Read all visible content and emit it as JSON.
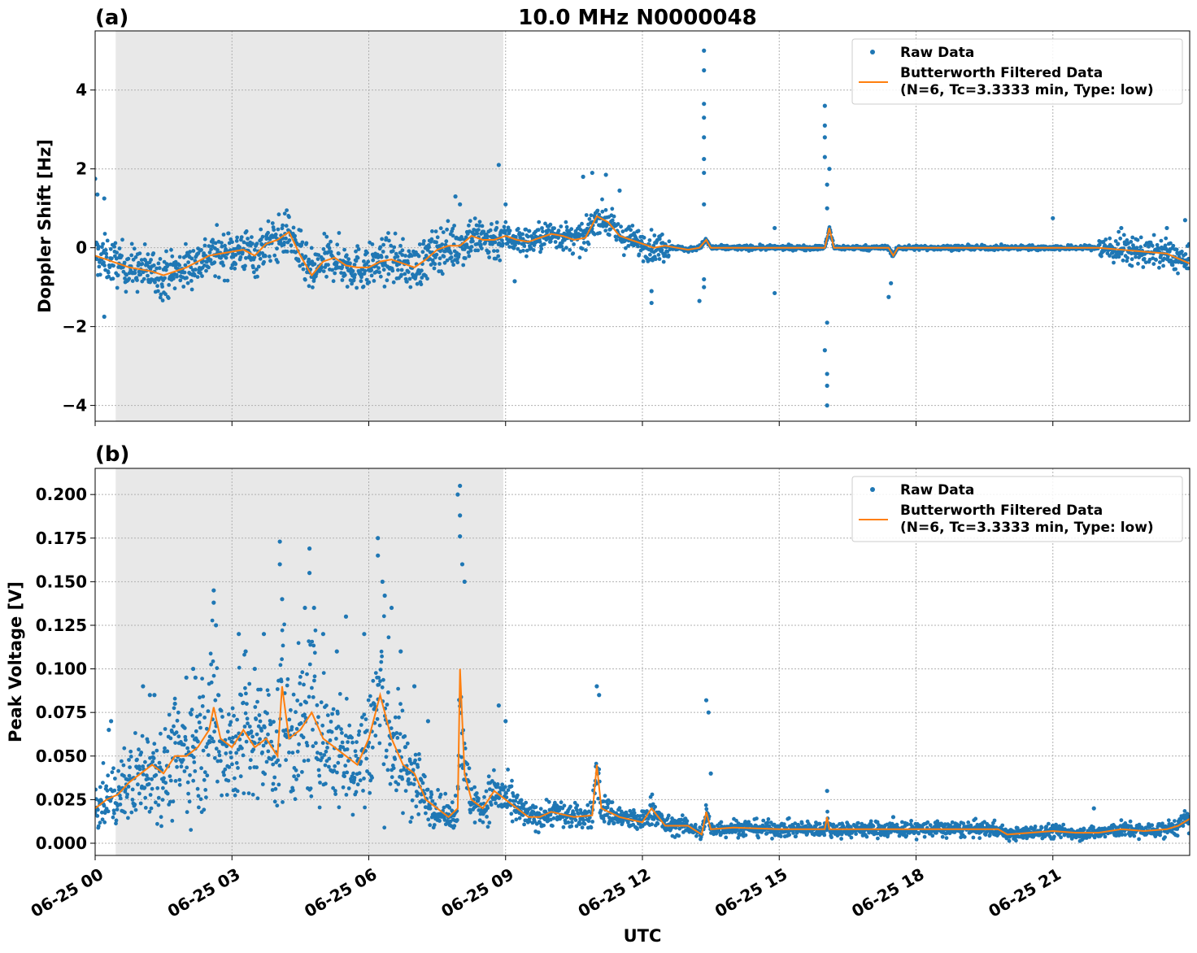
{
  "figure": {
    "title": "10.0 MHz N0000048",
    "xlabel": "UTC"
  },
  "colors": {
    "raw": "#1f77b4",
    "filtered": "#ff7f0e",
    "shade": "#e8e8e8",
    "grid": "#b0b0b0"
  },
  "chart_data": [
    {
      "type": "scatter",
      "panel_label": "(a)",
      "ylabel": "Doppler Shift [Hz]",
      "x_unit": "hours UTC on 06-25",
      "xlim": [
        0,
        24
      ],
      "ylim": [
        -4.4,
        5.5
      ],
      "yticks": [
        -4,
        -2,
        0,
        2,
        4
      ],
      "ytick_labels": [
        "−4",
        "−2",
        "0",
        "2",
        "4"
      ],
      "grid": true,
      "shaded_x_range": [
        0.45,
        8.95
      ],
      "legend": {
        "placement": "top-right",
        "raw_label": "Raw Data",
        "filt_label_1": "Butterworth Filtered Data",
        "filt_label_2": "(N=6, Tc=3.3333 min, Type: low)"
      },
      "series": [
        {
          "name": "Butterworth Filtered Data",
          "mark": "line",
          "x": [
            0,
            0.25,
            0.5,
            0.75,
            1,
            1.25,
            1.5,
            1.75,
            2,
            2.25,
            2.5,
            2.75,
            3,
            3.25,
            3.5,
            3.75,
            4,
            4.25,
            4.5,
            4.75,
            5,
            5.25,
            5.5,
            5.75,
            6,
            6.25,
            6.5,
            6.75,
            7,
            7.25,
            7.5,
            7.75,
            8,
            8.25,
            8.5,
            8.75,
            9,
            9.25,
            9.5,
            9.75,
            10,
            10.25,
            10.5,
            10.75,
            11,
            11.25,
            11.5,
            11.75,
            12,
            12.25,
            12.5,
            12.75,
            13,
            13.25,
            13.4,
            13.5,
            13.75,
            14,
            15,
            16,
            16.1,
            16.2,
            16.5,
            17,
            17.4,
            17.5,
            17.6,
            18,
            19,
            20,
            21,
            22,
            22.5,
            23,
            23.5,
            24
          ],
          "y": [
            -0.2,
            -0.3,
            -0.4,
            -0.5,
            -0.55,
            -0.6,
            -0.7,
            -0.6,
            -0.5,
            -0.35,
            -0.2,
            -0.15,
            -0.1,
            -0.05,
            -0.2,
            0.1,
            0.2,
            0.4,
            -0.2,
            -0.7,
            -0.35,
            -0.25,
            -0.45,
            -0.5,
            -0.5,
            -0.35,
            -0.3,
            -0.4,
            -0.5,
            -0.3,
            -0.05,
            0.05,
            0.05,
            0.3,
            0.2,
            0.2,
            0.3,
            0.2,
            0.15,
            0.25,
            0.35,
            0.3,
            0.2,
            0.25,
            0.8,
            0.65,
            0.3,
            0.2,
            0.1,
            0.0,
            0.05,
            0.0,
            -0.05,
            0.0,
            0.2,
            0.0,
            0.0,
            0.0,
            0.0,
            0.0,
            0.5,
            0.0,
            0.0,
            0.0,
            0.0,
            -0.2,
            0.0,
            0.0,
            0.0,
            0.0,
            0.0,
            0.0,
            -0.05,
            -0.1,
            -0.15,
            -0.4
          ]
        },
        {
          "name": "Raw Data",
          "mark": "points",
          "outliers": {
            "x": [
              0.0,
              0.05,
              0.2,
              0.2,
              7.9,
              8.0,
              8.85,
              9.0,
              9.2,
              10.7,
              10.9,
              11.2,
              11.5,
              12.2,
              12.2,
              13.25,
              13.35,
              13.35,
              13.35,
              13.35,
              13.35,
              13.35,
              13.35,
              13.35,
              13.35,
              13.35,
              14.9,
              14.9,
              16.0,
              16.0,
              16.0,
              16.0,
              16.05,
              16.05,
              16.05,
              16.0,
              16.05,
              16.05,
              16.05,
              16.1,
              17.4,
              17.45,
              21.0,
              22.5,
              23.5,
              23.9
            ],
            "y": [
              1.75,
              1.35,
              1.25,
              -1.75,
              1.3,
              1.1,
              2.1,
              1.1,
              -0.85,
              1.8,
              1.9,
              1.85,
              1.45,
              -1.4,
              -1.1,
              -1.35,
              5.0,
              4.5,
              3.65,
              3.3,
              2.8,
              1.9,
              1.1,
              -0.8,
              -1.0,
              2.25,
              0.5,
              -1.15,
              3.6,
              3.1,
              2.8,
              2.3,
              1.6,
              1.0,
              -1.9,
              -2.6,
              -3.2,
              -3.5,
              -4.0,
              2.0,
              -1.25,
              -0.9,
              0.75,
              0.5,
              0.5,
              0.7
            ]
          }
        }
      ]
    },
    {
      "type": "scatter",
      "panel_label": "(b)",
      "ylabel": "Peak Voltage [V]",
      "x_unit": "hours UTC on 06-25",
      "xlim": [
        0,
        24
      ],
      "ylim": [
        -0.007,
        0.215
      ],
      "yticks": [
        0.0,
        0.025,
        0.05,
        0.075,
        0.1,
        0.125,
        0.15,
        0.175,
        0.2
      ],
      "ytick_labels": [
        "0.000",
        "0.025",
        "0.050",
        "0.075",
        "0.100",
        "0.125",
        "0.150",
        "0.175",
        "0.200"
      ],
      "xticks": [
        0,
        3,
        6,
        9,
        12,
        15,
        18,
        21
      ],
      "xtick_labels": [
        "06-25 00",
        "06-25 03",
        "06-25 06",
        "06-25 09",
        "06-25 12",
        "06-25 15",
        "06-25 18",
        "06-25 21"
      ],
      "grid": true,
      "shaded_x_range": [
        0.45,
        8.95
      ],
      "legend": {
        "placement": "top-right",
        "raw_label": "Raw Data",
        "filt_label_1": "Butterworth Filtered Data",
        "filt_label_2": "(N=6, Tc=3.3333 min, Type: low)"
      },
      "series": [
        {
          "name": "Butterworth Filtered Data",
          "mark": "line",
          "x": [
            0,
            0.25,
            0.5,
            0.75,
            1,
            1.25,
            1.5,
            1.75,
            2,
            2.25,
            2.5,
            2.6,
            2.75,
            3,
            3.25,
            3.5,
            3.75,
            4,
            4.1,
            4.25,
            4.5,
            4.75,
            5,
            5.25,
            5.5,
            5.75,
            6,
            6.25,
            6.5,
            6.75,
            7,
            7.25,
            7.5,
            7.75,
            7.95,
            8.0,
            8.1,
            8.25,
            8.5,
            8.75,
            9,
            9.25,
            9.5,
            9.75,
            10,
            10.5,
            10.9,
            11.0,
            11.1,
            11.5,
            12,
            12.2,
            12.5,
            13,
            13.3,
            13.4,
            13.5,
            14,
            15,
            16,
            16.05,
            16.1,
            17,
            18,
            19,
            19.8,
            20,
            20.5,
            21,
            21.5,
            22,
            22.5,
            23,
            23.5,
            23.75,
            24
          ],
          "y": [
            0.02,
            0.025,
            0.028,
            0.035,
            0.04,
            0.045,
            0.04,
            0.05,
            0.05,
            0.055,
            0.065,
            0.078,
            0.06,
            0.055,
            0.065,
            0.055,
            0.06,
            0.05,
            0.09,
            0.06,
            0.065,
            0.075,
            0.06,
            0.055,
            0.05,
            0.045,
            0.06,
            0.085,
            0.06,
            0.045,
            0.04,
            0.025,
            0.02,
            0.015,
            0.02,
            0.1,
            0.04,
            0.025,
            0.02,
            0.03,
            0.025,
            0.02,
            0.015,
            0.015,
            0.018,
            0.015,
            0.016,
            0.045,
            0.02,
            0.015,
            0.012,
            0.02,
            0.01,
            0.01,
            0.005,
            0.018,
            0.008,
            0.009,
            0.008,
            0.008,
            0.015,
            0.008,
            0.008,
            0.008,
            0.008,
            0.008,
            0.005,
            0.006,
            0.007,
            0.006,
            0.006,
            0.008,
            0.007,
            0.008,
            0.01,
            0.014
          ]
        },
        {
          "name": "Raw Data",
          "mark": "points",
          "outliers": {
            "x": [
              0.35,
              0.3,
              1.05,
              1.2,
              1.3,
              1.75,
              2.0,
              2.15,
              2.2,
              2.6,
              2.6,
              2.65,
              3.15,
              3.3,
              3.5,
              3.7,
              4.05,
              4.05,
              4.1,
              4.6,
              4.7,
              4.7,
              4.8,
              5.0,
              5.3,
              5.5,
              5.9,
              6.2,
              6.2,
              6.3,
              6.35,
              6.5,
              6.7,
              7.0,
              7.3,
              7.95,
              8.0,
              8.0,
              8.0,
              8.05,
              8.1,
              8.85,
              9.0,
              11.0,
              11.05,
              13.4,
              13.45,
              13.5,
              16.05,
              17.5,
              21.9
            ],
            "y": [
              0.07,
              0.065,
              0.09,
              0.085,
              0.085,
              0.08,
              0.095,
              0.1,
              0.095,
              0.145,
              0.138,
              0.125,
              0.12,
              0.11,
              0.1,
              0.12,
              0.173,
              0.16,
              0.14,
              0.135,
              0.169,
              0.155,
              0.135,
              0.12,
              0.11,
              0.13,
              0.12,
              0.175,
              0.165,
              0.15,
              0.142,
              0.135,
              0.11,
              0.09,
              0.07,
              0.2,
              0.205,
              0.188,
              0.176,
              0.16,
              0.15,
              0.079,
              0.07,
              0.09,
              0.085,
              0.082,
              0.075,
              0.04,
              0.03,
              0.015,
              0.02
            ]
          }
        }
      ]
    }
  ]
}
